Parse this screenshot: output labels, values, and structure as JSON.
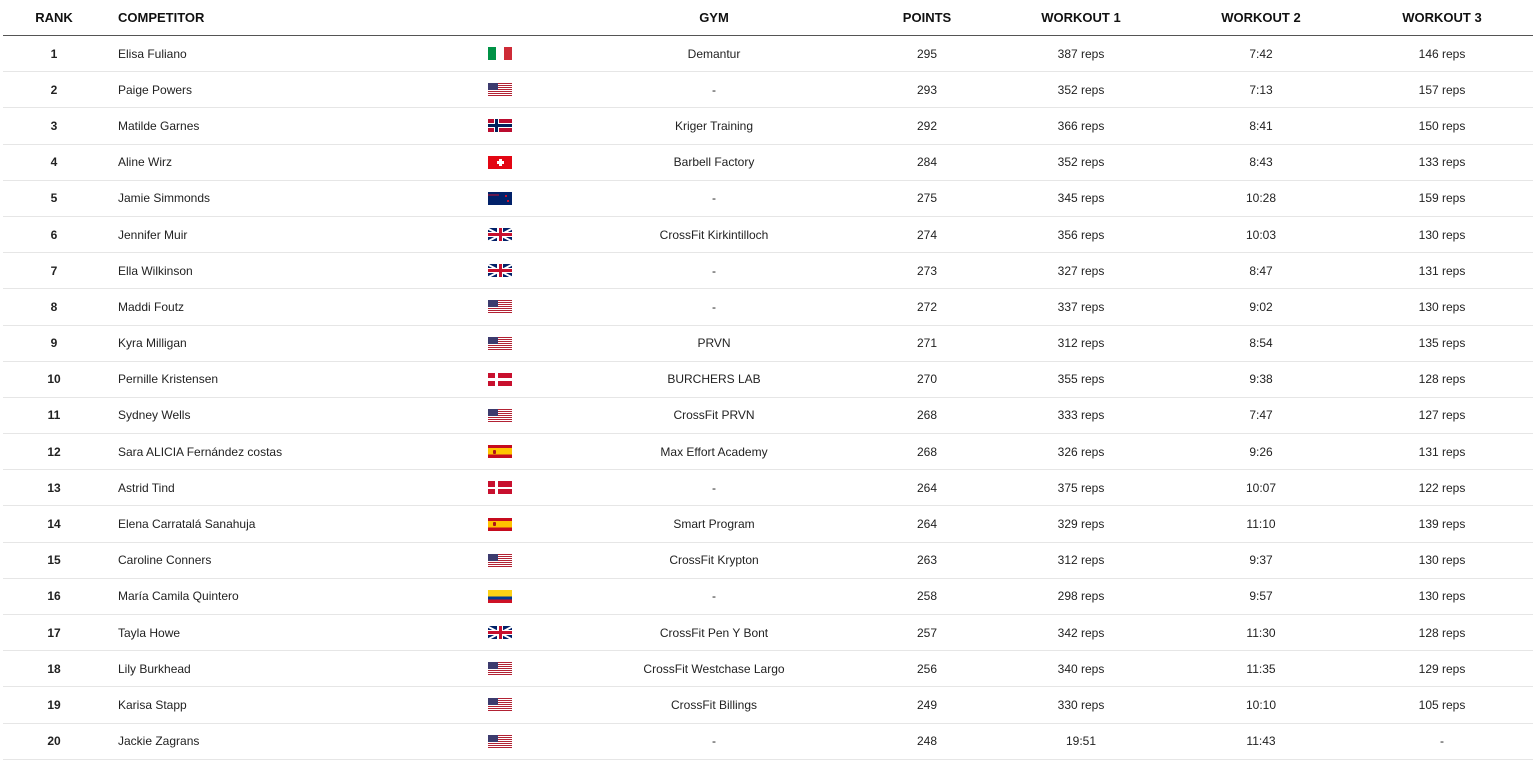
{
  "headers": {
    "rank": "RANK",
    "competitor": "COMPETITOR",
    "gym": "GYM",
    "points": "POINTS",
    "workout1": "WORKOUT 1",
    "workout2": "WORKOUT 2",
    "workout3": "WORKOUT 3"
  },
  "rows": [
    {
      "rank": "1",
      "name": "Elisa Fuliano",
      "flag": "IT",
      "gym": "Demantur",
      "points": "295",
      "w1": "387 reps",
      "w2": "7:42",
      "w3": "146 reps"
    },
    {
      "rank": "2",
      "name": "Paige Powers",
      "flag": "US",
      "gym": "-",
      "points": "293",
      "w1": "352 reps",
      "w2": "7:13",
      "w3": "157 reps"
    },
    {
      "rank": "3",
      "name": "Matilde Garnes",
      "flag": "NO",
      "gym": "Kriger Training",
      "points": "292",
      "w1": "366 reps",
      "w2": "8:41",
      "w3": "150 reps"
    },
    {
      "rank": "4",
      "name": "Aline Wirz",
      "flag": "CH",
      "gym": "Barbell Factory",
      "points": "284",
      "w1": "352 reps",
      "w2": "8:43",
      "w3": "133 reps"
    },
    {
      "rank": "5",
      "name": "Jamie Simmonds",
      "flag": "NZ",
      "gym": "-",
      "points": "275",
      "w1": "345 reps",
      "w2": "10:28",
      "w3": "159 reps"
    },
    {
      "rank": "6",
      "name": "Jennifer Muir",
      "flag": "GB",
      "gym": "CrossFit Kirkintilloch",
      "points": "274",
      "w1": "356 reps",
      "w2": "10:03",
      "w3": "130 reps"
    },
    {
      "rank": "7",
      "name": "Ella Wilkinson",
      "flag": "GB",
      "gym": "-",
      "points": "273",
      "w1": "327 reps",
      "w2": "8:47",
      "w3": "131 reps"
    },
    {
      "rank": "8",
      "name": "Maddi Foutz",
      "flag": "US",
      "gym": "-",
      "points": "272",
      "w1": "337 reps",
      "w2": "9:02",
      "w3": "130 reps"
    },
    {
      "rank": "9",
      "name": "Kyra Milligan",
      "flag": "US",
      "gym": "PRVN",
      "points": "271",
      "w1": "312 reps",
      "w2": "8:54",
      "w3": "135 reps"
    },
    {
      "rank": "10",
      "name": "Pernille Kristensen",
      "flag": "DK",
      "gym": "BURCHERS LAB",
      "points": "270",
      "w1": "355 reps",
      "w2": "9:38",
      "w3": "128 reps"
    },
    {
      "rank": "11",
      "name": "Sydney Wells",
      "flag": "US",
      "gym": "CrossFit PRVN",
      "points": "268",
      "w1": "333 reps",
      "w2": "7:47",
      "w3": "127 reps"
    },
    {
      "rank": "12",
      "name": "Sara ALICIA Fernández costas",
      "flag": "ES",
      "gym": "Max Effort Academy",
      "points": "268",
      "w1": "326 reps",
      "w2": "9:26",
      "w3": "131 reps"
    },
    {
      "rank": "13",
      "name": "Astrid Tind",
      "flag": "DK",
      "gym": "-",
      "points": "264",
      "w1": "375 reps",
      "w2": "10:07",
      "w3": "122 reps"
    },
    {
      "rank": "14",
      "name": "Elena Carratalá Sanahuja",
      "flag": "ES",
      "gym": "Smart Program",
      "points": "264",
      "w1": "329 reps",
      "w2": "11:10",
      "w3": "139 reps"
    },
    {
      "rank": "15",
      "name": "Caroline Conners",
      "flag": "US",
      "gym": "CrossFit Krypton",
      "points": "263",
      "w1": "312 reps",
      "w2": "9:37",
      "w3": "130 reps"
    },
    {
      "rank": "16",
      "name": "María Camila Quintero",
      "flag": "CO",
      "gym": "-",
      "points": "258",
      "w1": "298 reps",
      "w2": "9:57",
      "w3": "130 reps"
    },
    {
      "rank": "17",
      "name": "Tayla Howe",
      "flag": "GB",
      "gym": "CrossFit Pen Y Bont",
      "points": "257",
      "w1": "342 reps",
      "w2": "11:30",
      "w3": "128 reps"
    },
    {
      "rank": "18",
      "name": "Lily Burkhead",
      "flag": "US",
      "gym": "CrossFit Westchase Largo",
      "points": "256",
      "w1": "340 reps",
      "w2": "11:35",
      "w3": "129 reps"
    },
    {
      "rank": "19",
      "name": "Karisa Stapp",
      "flag": "US",
      "gym": "CrossFit Billings",
      "points": "249",
      "w1": "330 reps",
      "w2": "10:10",
      "w3": "105 reps"
    },
    {
      "rank": "20",
      "name": "Jackie Zagrans",
      "flag": "US",
      "gym": "-",
      "points": "248",
      "w1": "19:51",
      "w2": "11:43",
      "w3": "-"
    }
  ]
}
